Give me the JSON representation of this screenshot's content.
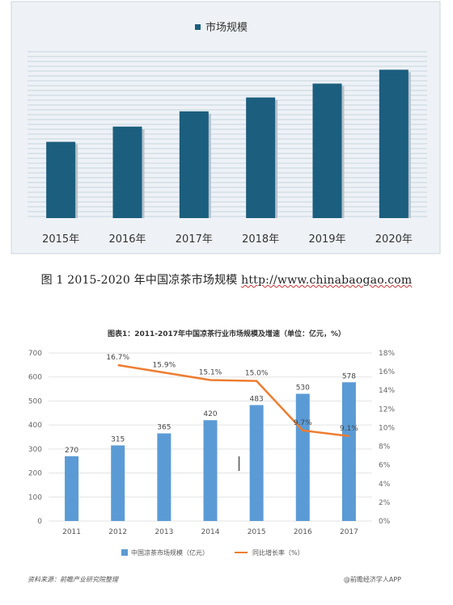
{
  "chart_data": [
    {
      "type": "bar",
      "legend": "市场规模",
      "categories": [
        "2015年",
        "2016年",
        "2017年",
        "2018年",
        "2019年",
        "2020年"
      ],
      "values": [
        0.55,
        0.66,
        0.77,
        0.87,
        0.97,
        1.07
      ],
      "color": "#1b5e7e"
    },
    {
      "type": "bar+line",
      "title": "图表1：2011-2017年中国凉茶行业市场规模及增速（单位：亿元，%）",
      "categories": [
        "2011",
        "2012",
        "2013",
        "2014",
        "2015",
        "2016",
        "2017"
      ],
      "y_left": {
        "min": 0,
        "max": 700,
        "ticks": [
          "0",
          "100",
          "200",
          "300",
          "400",
          "500",
          "600",
          "700"
        ]
      },
      "y_right": {
        "min": 0,
        "max": 18,
        "ticks": [
          "0%",
          "2%",
          "4%",
          "6%",
          "8%",
          "10%",
          "12%",
          "14%",
          "16%",
          "18%"
        ]
      },
      "series": [
        {
          "name": "中国凉茶市场规模（亿元）",
          "type": "bar",
          "axis": "left",
          "values": [
            270,
            315,
            365,
            420,
            483,
            530,
            578
          ],
          "labels": [
            "270",
            "315",
            "365",
            "420",
            "483",
            "530",
            "578"
          ],
          "color": "#5b9bd5"
        },
        {
          "name": "同比增长率（%）",
          "type": "line",
          "axis": "right",
          "values": [
            null,
            16.7,
            15.9,
            15.1,
            15.0,
            9.7,
            9.1
          ],
          "labels": [
            "",
            "16.7%",
            "15.9%",
            "15.1%",
            "15.0%",
            "9.7%",
            "9.1%"
          ],
          "color": "#ed7d31"
        }
      ]
    }
  ],
  "caption": {
    "text": "图 1 2015-2020 年中国凉茶市场规模 ",
    "url": "http://www.chinabaogao.com"
  },
  "footer": {
    "source": "资料来源：前瞻产业研究院整理",
    "app": "@前瞻经济学人APP"
  }
}
